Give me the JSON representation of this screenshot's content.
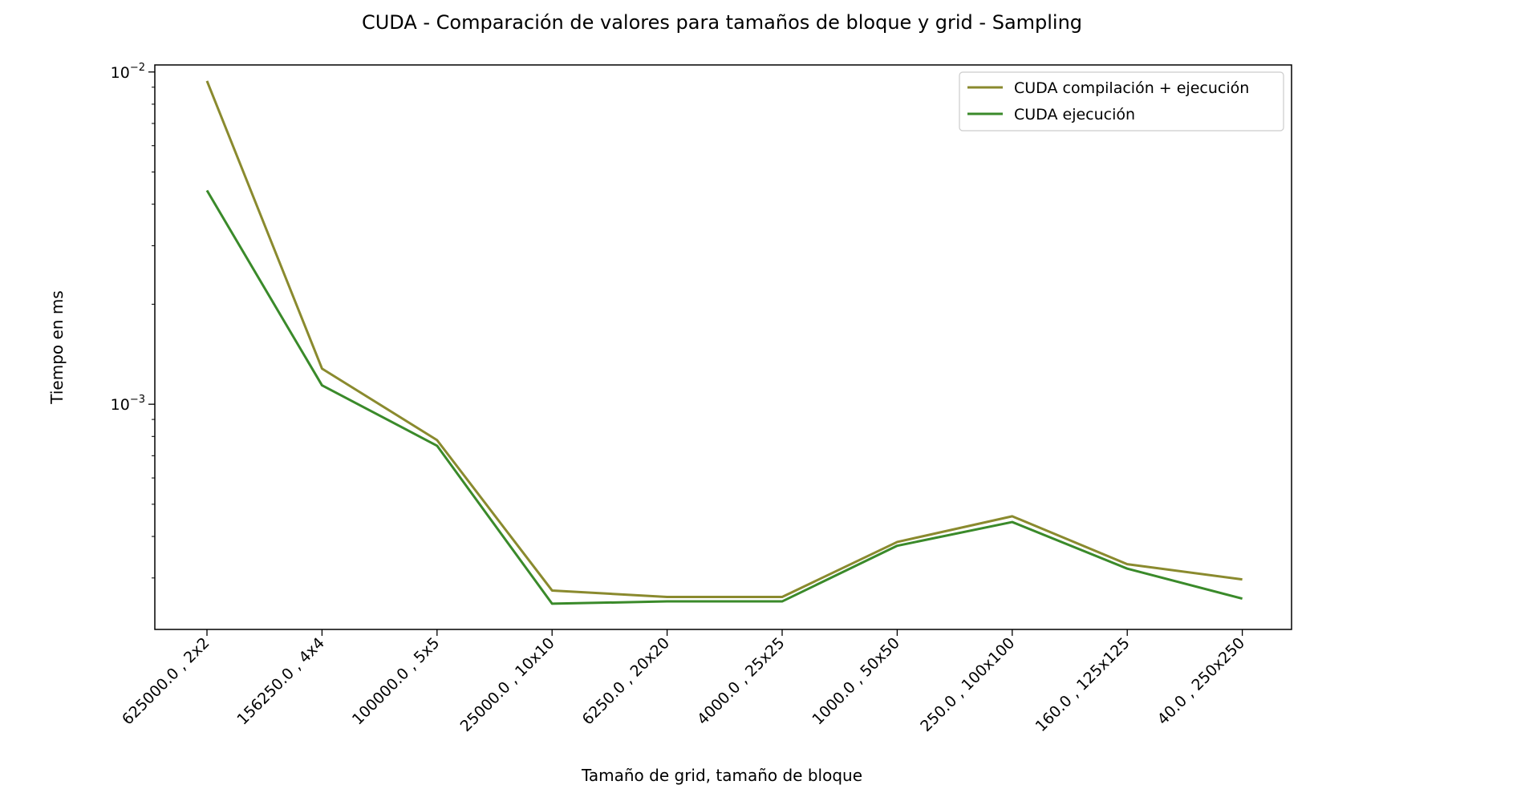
{
  "chart_data": {
    "type": "line",
    "title": "CUDA - Comparación de valores para tamaños de bloque y grid - Sampling",
    "xlabel": "Tamaño de grid, tamaño de bloque",
    "ylabel": "Tiempo en ms",
    "yscale": "log",
    "ylim": [
      0.00021,
      0.0105
    ],
    "y_ticks": [
      {
        "value": 0.01,
        "base": "10",
        "exp": "−2"
      },
      {
        "value": 0.001,
        "base": "10",
        "exp": "−3"
      }
    ],
    "categories": [
      "625000.0 , 2x2",
      "156250.0 , 4x4",
      "100000.0 , 5x5",
      "25000.0 , 10x10",
      "6250.0 , 20x20",
      "4000.0 , 25x25",
      "1000.0 , 50x50",
      "250.0 , 100x100",
      "160.0 , 125x125",
      "40.0 , 250x250"
    ],
    "series": [
      {
        "name": "CUDA compilación + ejecución",
        "color": "#8a8a2e",
        "values": [
          0.0094,
          0.00128,
          0.00078,
          0.000275,
          0.000263,
          0.000263,
          0.000385,
          0.00046,
          0.00033,
          0.000297
        ]
      },
      {
        "name": "CUDA ejecución",
        "color": "#3a8a2a",
        "values": [
          0.0044,
          0.00114,
          0.00075,
          0.000251,
          0.000255,
          0.000255,
          0.000375,
          0.000442,
          0.00032,
          0.00026
        ]
      }
    ],
    "legend_position": "top-right",
    "grid": false
  }
}
